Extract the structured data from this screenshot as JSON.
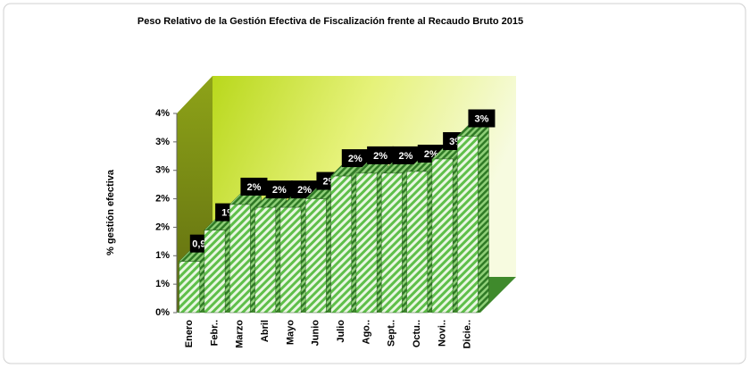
{
  "chart_data": {
    "type": "bar3d",
    "title": "Peso Relativo de la Gestión Efectiva de Fiscalización frente al Recaudo Bruto 2015",
    "y_label": "% gestión efectiva",
    "categories": [
      "Enero",
      "Febr..",
      "Marzo",
      "Abril",
      "Mayo",
      "Junio",
      "Julio",
      "Ago..",
      "Sept..",
      "Octu..",
      "Novi..",
      "Dicie.."
    ],
    "values": [
      0.9,
      1.45,
      1.9,
      1.85,
      1.85,
      2.0,
      2.4,
      2.45,
      2.45,
      2.48,
      2.7,
      3.1
    ],
    "value_labels": [
      "0,9%",
      "1%",
      "2%",
      "2%",
      "2%",
      "2%",
      "2%",
      "2%",
      "2%",
      "2%",
      "3%",
      "3%"
    ],
    "color": "#5fbf4a",
    "ylim": [
      0,
      3.5
    ],
    "yticks": [
      {
        "value": 0,
        "label": "0%"
      },
      {
        "value": 0.5,
        "label": "1%"
      },
      {
        "value": 1,
        "label": "1%"
      },
      {
        "value": 1.5,
        "label": "2%"
      },
      {
        "value": 2,
        "label": "2%"
      },
      {
        "value": 2.5,
        "label": "3%"
      },
      {
        "value": 3,
        "label": "3%"
      },
      {
        "value": 3.5,
        "label": "4%"
      }
    ]
  }
}
